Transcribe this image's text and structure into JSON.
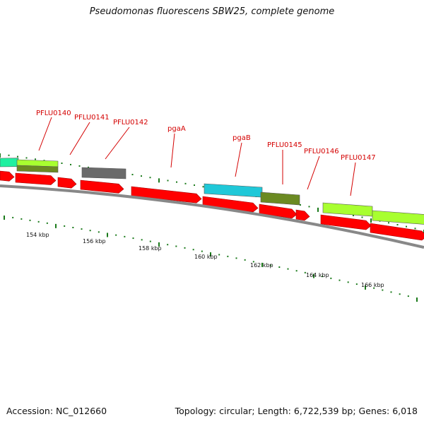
{
  "title": "Pseudomonas fluorescens SBW25, complete genome",
  "footer": {
    "accession": "Accession: NC_012660",
    "summary": "Topology: circular; Length: 6,722,539 bp; Genes: 6,018"
  },
  "gene_labels": [
    "PFLU0140",
    "PFLU0141",
    "PFLU0142",
    "pgaA",
    "pgaB",
    "PFLU0145",
    "PFLU0146",
    "PFLU0147"
  ],
  "kbp_labels": [
    "154 kbp",
    "156 kbp",
    "158 kbp",
    "160 kbp",
    "162 kbp",
    "164 kbp",
    "166 kbp"
  ],
  "colors": {
    "cds": "#ff0000",
    "backbone": "#888888",
    "label": "#d40000",
    "tick": "#1a7a1a",
    "lime": "#a8ff30",
    "olive": "#6b8a22",
    "cyan": "#20c8d8",
    "gray_feature": "#6a6a6a",
    "mint": "#20f0a0"
  }
}
